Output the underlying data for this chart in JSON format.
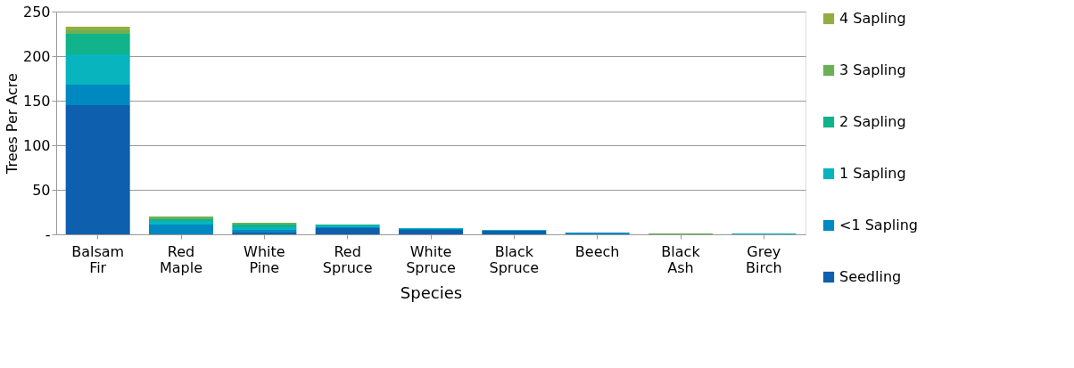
{
  "chart_data": {
    "type": "bar",
    "stacked": true,
    "xlabel": "Species",
    "ylabel": "Trees Per Acre",
    "categories": [
      "Balsam Fir",
      "Red Maple",
      "White Pine",
      "Red Spruce",
      "White Spruce",
      "Black Spruce",
      "Beech",
      "Black Ash",
      "Grey Birch"
    ],
    "series": [
      {
        "name": "Seedling",
        "color": "#0e5fae",
        "values": [
          145,
          0,
          2,
          7,
          5,
          4,
          0,
          0,
          0
        ]
      },
      {
        "name": "<1 Sapling",
        "color": "#0088c0",
        "values": [
          23,
          11,
          3,
          1,
          1,
          0,
          2,
          0,
          0
        ]
      },
      {
        "name": "1 Sapling",
        "color": "#08b5bf",
        "values": [
          34,
          4,
          3,
          2,
          1,
          1,
          0,
          0,
          1
        ]
      },
      {
        "name": "2 Sapling",
        "color": "#10b38a",
        "values": [
          23,
          2,
          3,
          1,
          0,
          0,
          0,
          0,
          0
        ]
      },
      {
        "name": "3 Sapling",
        "color": "#6ab155",
        "values": [
          4,
          3,
          2,
          0,
          0,
          0,
          0,
          1,
          0
        ]
      },
      {
        "name": "4 Sapling",
        "color": "#94ad43",
        "values": [
          4,
          0,
          0,
          0,
          0,
          0,
          0,
          0,
          0
        ]
      }
    ],
    "ylim": [
      0,
      250
    ],
    "yticks": [
      {
        "value": 0,
        "label": "-"
      },
      50,
      100,
      150,
      200,
      250
    ],
    "grid": "y",
    "legend": "right"
  }
}
